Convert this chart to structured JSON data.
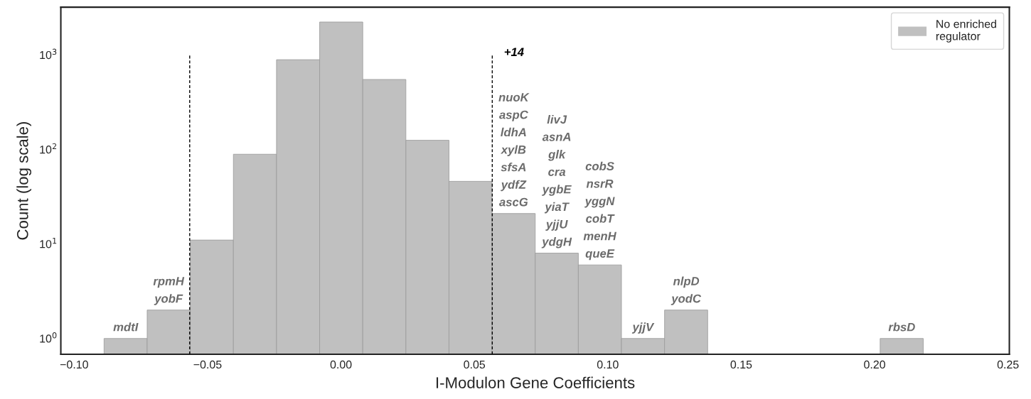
{
  "chart_data": {
    "type": "histogram",
    "xlabel": "I-Modulon Gene Coefficients",
    "ylabel": "Count (log scale)",
    "bins": [
      -0.0888,
      -0.07264,
      -0.05648,
      -0.04032,
      -0.02416,
      -0.008,
      0.00816,
      0.02432,
      0.04048,
      0.05664,
      0.0728,
      0.08896,
      0.10512,
      0.12128,
      0.13744,
      0.1536,
      0.16976,
      0.18592,
      0.20208,
      0.21824
    ],
    "series": [
      {
        "name": "No enriched\nregulator",
        "color": "#c0c0c0",
        "values": [
          1,
          2,
          11,
          89,
          890,
          2230,
          550,
          125,
          46,
          21,
          8,
          6,
          1,
          2,
          null,
          null,
          null,
          null,
          1
        ]
      }
    ],
    "log": "y",
    "xlim": [
      -0.105,
      0.2505
    ],
    "ylim": [
      0.68,
      3200
    ],
    "xticks": [
      {
        "value": -0.1,
        "label": "−0.10"
      },
      {
        "value": -0.05,
        "label": "−0.05"
      },
      {
        "value": 0.0,
        "label": "0.00"
      },
      {
        "value": 0.05,
        "label": "0.05"
      },
      {
        "value": 0.1,
        "label": "0.10"
      },
      {
        "value": 0.15,
        "label": "0.15"
      },
      {
        "value": 0.2,
        "label": "0.20"
      },
      {
        "value": 0.25,
        "label": "0.25"
      }
    ],
    "yticks": [
      {
        "value": 1,
        "label": "10$^{0}$"
      },
      {
        "value": 10,
        "label": "10$^{1}$"
      },
      {
        "value": 100,
        "label": "10$^{2}$"
      },
      {
        "value": 1000,
        "label": "10$^{3}$"
      }
    ],
    "ref_lines": [
      {
        "axis": "x",
        "value": -0.0567,
        "line_style": "dashed",
        "color": "#000000"
      },
      {
        "axis": "x",
        "value": 0.0567,
        "line_style": "dashed",
        "color": "#000000"
      }
    ],
    "annotations": [
      {
        "text": "mdtI",
        "x": -0.0807,
        "y": 1
      },
      {
        "text": "rpmH\nyobF",
        "x": -0.0646,
        "y": 2
      },
      {
        "text": "nuoK\naspC\nldhA\nxylB\nsfsA\nydfZ\nascG",
        "x": 0.0647,
        "y": 21
      },
      "+14",
      {
        "text": "livJ\nasnA\nglk\ncra\nygbE\nyiaT\nyjjU\nydgH",
        "x": 0.0809,
        "y": 8
      },
      {
        "text": "cobS\nnsrR\nyggN\ncobT\nmenH\nqueE",
        "x": 0.097,
        "y": 6
      },
      {
        "text": "yjjV",
        "x": 0.1132,
        "y": 1
      },
      {
        "text": "nlpD\nyodC",
        "x": 0.1294,
        "y": 2
      },
      {
        "text": "rbsD",
        "x": 0.2102,
        "y": 1
      }
    ],
    "grid": false,
    "legend": "top right"
  }
}
